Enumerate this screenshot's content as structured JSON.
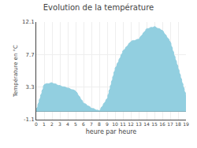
{
  "chart_data": {
    "type": "area",
    "title": "Evolution de la température",
    "x_label": "heure par heure",
    "y_label": "Température en °C",
    "x": [
      0,
      1,
      2,
      3,
      4,
      5,
      6,
      7,
      8,
      9,
      10,
      11,
      12,
      13,
      14,
      15,
      16,
      17,
      18,
      19
    ],
    "values": [
      0.2,
      3.7,
      3.9,
      3.5,
      3.2,
      2.8,
      1.2,
      0.5,
      0.1,
      1.8,
      5.8,
      8.2,
      9.5,
      9.8,
      11.2,
      11.5,
      11.0,
      9.5,
      6.0,
      2.2
    ],
    "color": "#92cfe0",
    "line_style": "dotted",
    "xlim": [
      0,
      19
    ],
    "xticks": [
      0,
      1,
      2,
      3,
      4,
      5,
      6,
      7,
      8,
      9,
      10,
      11,
      12,
      13,
      14,
      15,
      16,
      17,
      18,
      19
    ],
    "ylim": [
      -1.1,
      12.1
    ],
    "yticks": [
      -1.1,
      3.3,
      7.7,
      12.1
    ],
    "grid": true
  }
}
